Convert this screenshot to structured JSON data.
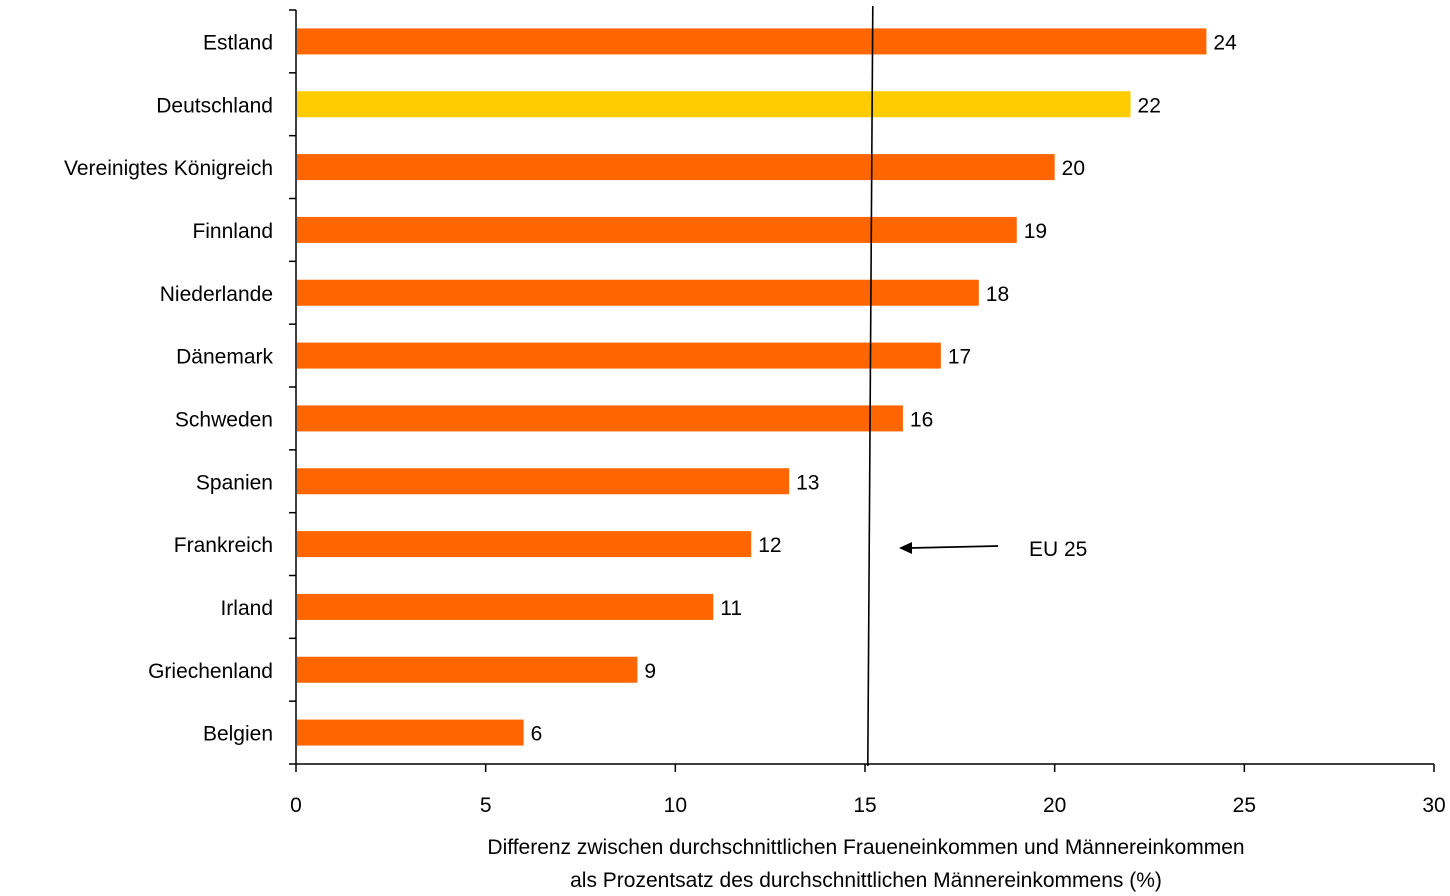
{
  "chart_data": {
    "type": "bar",
    "orientation": "horizontal",
    "categories": [
      "Estland",
      "Deutschland",
      "Vereinigtes Königreich",
      "Finnland",
      "Niederlande",
      "Dänemark",
      "Schweden",
      "Spanien",
      "Frankreich",
      "Irland",
      "Griechenland",
      "Belgien"
    ],
    "values": [
      24,
      22,
      20,
      19,
      18,
      17,
      16,
      13,
      12,
      11,
      9,
      6
    ],
    "highlight_category": "Deutschland",
    "colors": {
      "bar": "#ff6600",
      "highlight": "#ffcc00",
      "axis": "#000000",
      "reference_line": "#000000"
    },
    "xlim": [
      0,
      30
    ],
    "xticks": [
      0,
      5,
      10,
      15,
      20,
      25,
      30
    ],
    "xlabel_lines": [
      "Differenz zwischen durchschnittlichen Fraueneinkommen und Männereinkommen",
      "als Prozentsatz des durchschnittlichen Männereinkommens (%)"
    ],
    "reference_line": {
      "value": 15.1,
      "label": "EU 25"
    },
    "grid": false,
    "legend": false
  }
}
